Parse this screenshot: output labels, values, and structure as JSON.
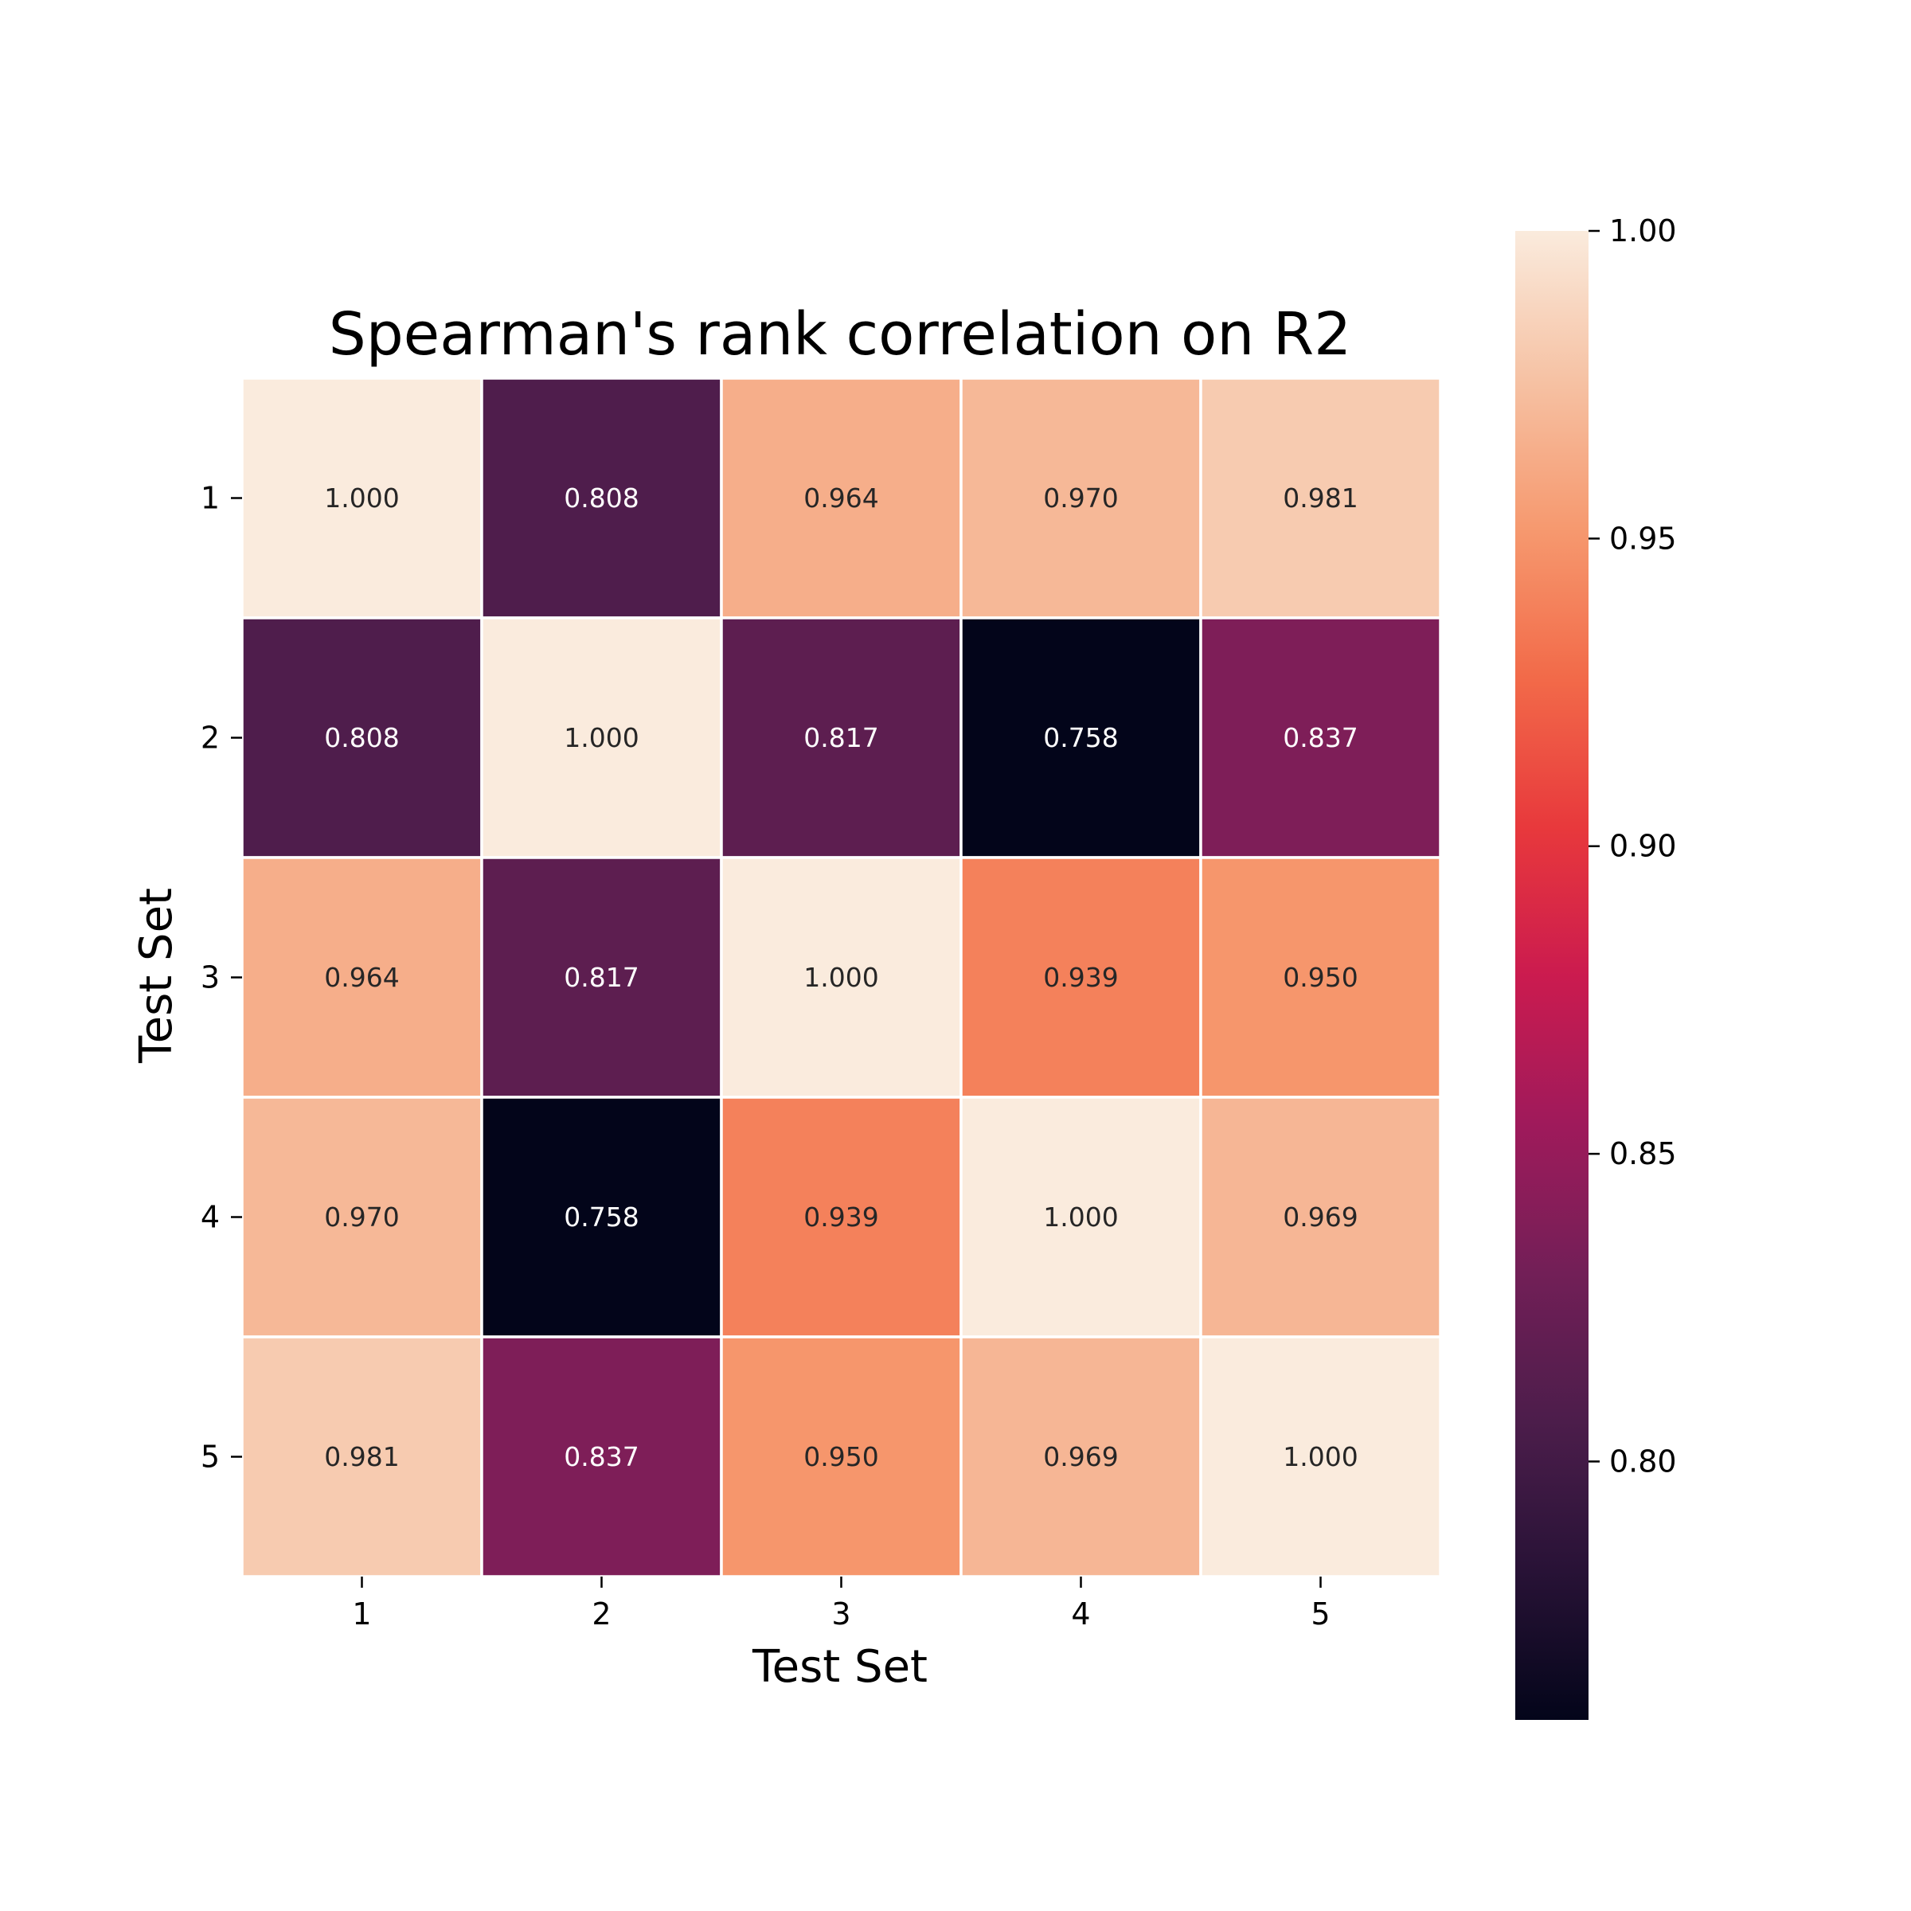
{
  "chart_data": {
    "type": "heatmap",
    "title": "Spearman's rank correlation on R2",
    "xlabel": "Test Set",
    "ylabel": "Test Set",
    "x_categories": [
      "1",
      "2",
      "3",
      "4",
      "5"
    ],
    "y_categories": [
      "1",
      "2",
      "3",
      "4",
      "5"
    ],
    "values": [
      [
        1.0,
        0.808,
        0.964,
        0.97,
        0.981
      ],
      [
        0.808,
        1.0,
        0.817,
        0.758,
        0.837
      ],
      [
        0.964,
        0.817,
        1.0,
        0.939,
        0.95
      ],
      [
        0.97,
        0.758,
        0.939,
        1.0,
        0.969
      ],
      [
        0.981,
        0.837,
        0.95,
        0.969,
        1.0
      ]
    ],
    "annotations": [
      [
        "1.000",
        "0.808",
        "0.964",
        "0.970",
        "0.981"
      ],
      [
        "0.808",
        "1.000",
        "0.817",
        "0.758",
        "0.837"
      ],
      [
        "0.964",
        "0.817",
        "1.000",
        "0.939",
        "0.950"
      ],
      [
        "0.970",
        "0.758",
        "0.939",
        "1.000",
        "0.969"
      ],
      [
        "0.981",
        "0.837",
        "0.950",
        "0.969",
        "1.000"
      ]
    ],
    "colorbar": {
      "colormap": "rocket",
      "vmin": 0.758,
      "vmax": 1.0,
      "ticks": [
        0.8,
        0.85,
        0.9,
        0.95,
        1.0
      ],
      "tick_labels": [
        "0.80",
        "0.85",
        "0.90",
        "0.95",
        "1.00"
      ]
    },
    "grid": false,
    "legend": "none"
  }
}
